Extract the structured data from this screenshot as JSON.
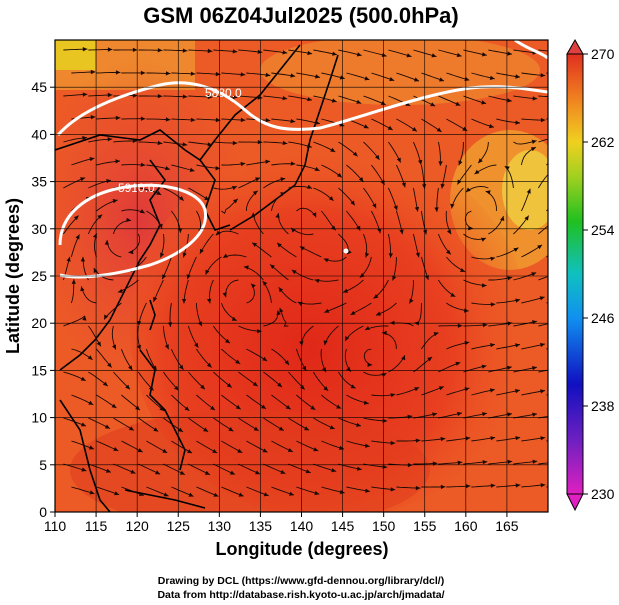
{
  "chart_data": {
    "type": "heatmap",
    "title": "GSM 06Z04Jul2025 (500.0hPa)",
    "xlabel": "Longitude (degrees)",
    "ylabel": "Latitude  (degrees)",
    "xlim": [
      110,
      170
    ],
    "ylim": [
      0,
      50
    ],
    "x_ticks": [
      110,
      115,
      120,
      125,
      130,
      135,
      140,
      145,
      150,
      155,
      160,
      165
    ],
    "y_ticks": [
      0,
      5,
      10,
      15,
      20,
      25,
      30,
      35,
      40,
      45
    ],
    "x_tick_labels": [
      "110",
      "115",
      "120",
      "125",
      "130",
      "135",
      "140",
      "145",
      "150",
      "155",
      "160",
      "165"
    ],
    "y_tick_labels": [
      "0",
      "5",
      "10",
      "15",
      "20",
      "25",
      "30",
      "35",
      "40",
      "45"
    ],
    "colorbar": {
      "min": 230,
      "max": 270,
      "ticks": [
        230,
        238,
        246,
        254,
        262,
        270
      ],
      "tick_labels": [
        "230",
        "238",
        "246",
        "254",
        "262",
        "270"
      ]
    },
    "contours": [
      {
        "label": "5880.0",
        "level": 5880
      },
      {
        "label": "5910.0",
        "level": 5910
      }
    ],
    "field_description_points": [
      {
        "lon": 112,
        "lat": 48,
        "value": 258
      },
      {
        "lon": 160,
        "lat": 30,
        "value": 262
      },
      {
        "lon": 145,
        "lat": 30,
        "value": 268
      },
      {
        "lon": 125,
        "lat": 15,
        "value": 269
      },
      {
        "lon": 150,
        "lat": 10,
        "value": 267
      }
    ]
  },
  "credits": {
    "line1": "Drawing by DCL (https://www.gfd-dennou.org/library/dcl/)",
    "line2": "Data from http://database.rish.kyoto-u.ac.jp/arch/jmadata/"
  },
  "colors": {
    "warm": "#d8301e",
    "orange": "#f07020",
    "yellow": "#f0c020"
  }
}
